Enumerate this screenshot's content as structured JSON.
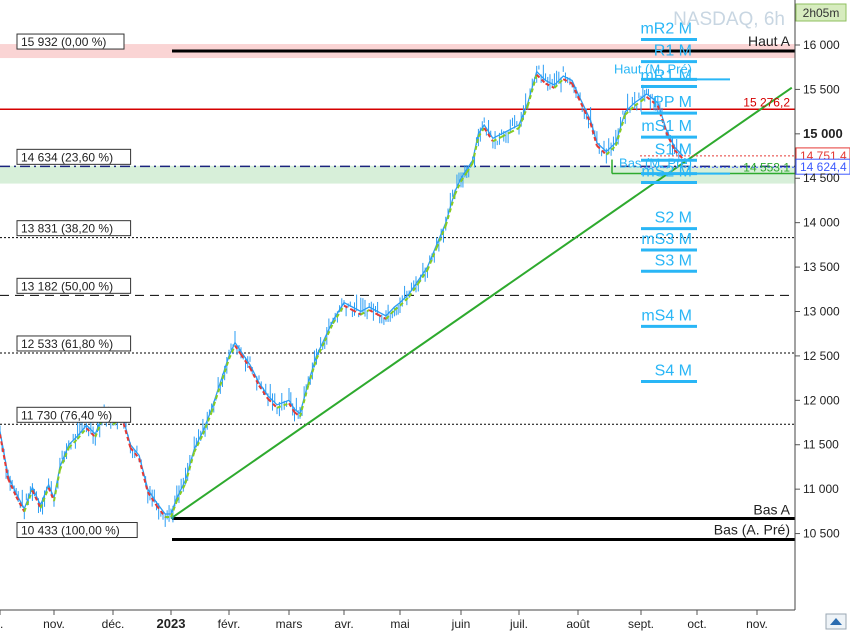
{
  "header": {
    "symbol_text": "NASDAQ, 6h",
    "timer": "2h05m"
  },
  "chart_data": {
    "type": "line",
    "title": "NASDAQ, 6h",
    "y_range": [
      10000,
      16000
    ],
    "y_ticks": [
      {
        "value": 16000,
        "label": "16 000"
      },
      {
        "value": 15500,
        "label": "15 500"
      },
      {
        "value": 15000,
        "label": "15 000"
      },
      {
        "value": 14500,
        "label": "14 500"
      },
      {
        "value": 14000,
        "label": "14 000"
      },
      {
        "value": 13500,
        "label": "13 500"
      },
      {
        "value": 13000,
        "label": "13 000"
      },
      {
        "value": 12500,
        "label": "12 500"
      },
      {
        "value": 12000,
        "label": "12 000"
      },
      {
        "value": 11500,
        "label": "11 500"
      },
      {
        "value": 11000,
        "label": "11 000"
      },
      {
        "value": 10500,
        "label": "10 500"
      }
    ],
    "y_tick_bold_value": 15000,
    "x_ticks": [
      {
        "t": 0,
        "label": "t."
      },
      {
        "t": 1,
        "label": "nov."
      },
      {
        "t": 2,
        "label": "déc."
      },
      {
        "t": 3,
        "label": "2023"
      },
      {
        "t": 4,
        "label": "févr."
      },
      {
        "t": 5,
        "label": "mars"
      },
      {
        "t": 6,
        "label": "avr."
      },
      {
        "t": 7,
        "label": "mai"
      },
      {
        "t": 8,
        "label": "juin"
      },
      {
        "t": 9,
        "label": "juil."
      },
      {
        "t": 10,
        "label": "août"
      },
      {
        "t": 11,
        "label": "sept."
      },
      {
        "t": 12,
        "label": "oct."
      },
      {
        "t": 13,
        "label": "nov."
      }
    ],
    "x_bold_tick": "2023",
    "price_series": {
      "name": "NASDAQ",
      "color": "#2a9df4",
      "points": [
        [
          0.0,
          11650
        ],
        [
          0.15,
          11150
        ],
        [
          0.3,
          10950
        ],
        [
          0.45,
          10780
        ],
        [
          0.6,
          11020
        ],
        [
          0.75,
          10820
        ],
        [
          0.9,
          11050
        ],
        [
          1.0,
          10900
        ],
        [
          1.1,
          11250
        ],
        [
          1.25,
          11500
        ],
        [
          1.4,
          11600
        ],
        [
          1.55,
          11720
        ],
        [
          1.7,
          11620
        ],
        [
          1.85,
          11880
        ],
        [
          2.0,
          11760
        ],
        [
          2.15,
          11850
        ],
        [
          2.3,
          11500
        ],
        [
          2.45,
          11380
        ],
        [
          2.6,
          11000
        ],
        [
          2.75,
          10850
        ],
        [
          2.9,
          10720
        ],
        [
          3.0,
          10720
        ],
        [
          3.1,
          10900
        ],
        [
          3.25,
          11100
        ],
        [
          3.4,
          11450
        ],
        [
          3.55,
          11650
        ],
        [
          3.7,
          11900
        ],
        [
          3.85,
          12200
        ],
        [
          4.0,
          12500
        ],
        [
          4.1,
          12650
        ],
        [
          4.2,
          12550
        ],
        [
          4.35,
          12400
        ],
        [
          4.5,
          12200
        ],
        [
          4.65,
          12050
        ],
        [
          4.8,
          11950
        ],
        [
          5.0,
          12000
        ],
        [
          5.1,
          11900
        ],
        [
          5.2,
          11850
        ],
        [
          5.35,
          12200
        ],
        [
          5.5,
          12500
        ],
        [
          5.65,
          12700
        ],
        [
          5.8,
          12900
        ],
        [
          6.0,
          13100
        ],
        [
          6.15,
          13050
        ],
        [
          6.3,
          13000
        ],
        [
          6.45,
          13050
        ],
        [
          6.6,
          13000
        ],
        [
          6.75,
          12950
        ],
        [
          6.9,
          13050
        ],
        [
          7.0,
          13100
        ],
        [
          7.15,
          13200
        ],
        [
          7.3,
          13350
        ],
        [
          7.45,
          13500
        ],
        [
          7.6,
          13750
        ],
        [
          7.75,
          14000
        ],
        [
          7.9,
          14350
        ],
        [
          8.0,
          14500
        ],
        [
          8.1,
          14600
        ],
        [
          8.2,
          14700
        ],
        [
          8.3,
          15000
        ],
        [
          8.4,
          15100
        ],
        [
          8.55,
          14950
        ],
        [
          8.7,
          15000
        ],
        [
          8.85,
          15050
        ],
        [
          9.0,
          15100
        ],
        [
          9.15,
          15350
        ],
        [
          9.3,
          15700
        ],
        [
          9.45,
          15600
        ],
        [
          9.6,
          15550
        ],
        [
          9.75,
          15650
        ],
        [
          9.9,
          15600
        ],
        [
          10.0,
          15450
        ],
        [
          10.1,
          15300
        ],
        [
          10.2,
          15150
        ],
        [
          10.3,
          14900
        ],
        [
          10.45,
          14800
        ],
        [
          10.6,
          14900
        ],
        [
          10.75,
          15250
        ],
        [
          10.9,
          15350
        ],
        [
          11.0,
          15400
        ],
        [
          11.1,
          15450
        ],
        [
          11.2,
          15400
        ],
        [
          11.3,
          15350
        ],
        [
          11.45,
          15050
        ],
        [
          11.6,
          14850
        ],
        [
          11.75,
          14751.4
        ]
      ]
    },
    "moving_average_color": "#88cc22",
    "moving_average_down_color": "#e53935",
    "levels": [
      {
        "value": 15932,
        "label": "15 932 (0,00 %)",
        "style": "thick",
        "color": "#000000",
        "band": "#f8c6c6",
        "right_label": "Haut A"
      },
      {
        "value": 14634,
        "label": "14 634 (23,60 %)",
        "style": "dashdot",
        "color": "#1a237e"
      },
      {
        "value": 13831,
        "label": "13 831 (38,20 %)",
        "style": "dotted",
        "color": "#000000"
      },
      {
        "value": 13182,
        "label": "13 182 (50,00 %)",
        "style": "dashed",
        "color": "#000000"
      },
      {
        "value": 12533,
        "label": "12 533 (61,80 %)",
        "style": "dotted",
        "color": "#000000"
      },
      {
        "value": 11730,
        "label": "11 730 (76,40 %)",
        "style": "dotted",
        "color": "#000000"
      },
      {
        "value": 10433,
        "label": "10 433 (100,00 %)",
        "style": "thick",
        "color": "#000000",
        "right_label": "Bas (A. Pré)"
      }
    ],
    "bas_a": {
      "value": 10670,
      "label": "Bas A"
    },
    "resistance": {
      "value": 15276.2,
      "label": "15 276,2",
      "color": "#d50000"
    },
    "support_band": {
      "from": 14440,
      "to": 14640,
      "color": "#cdebcf"
    },
    "trendline": {
      "from": [
        3.0,
        10670
      ],
      "to": [
        13.6,
        15520
      ],
      "color": "#2eaa2e"
    },
    "green_level": {
      "value": 14553.1,
      "label": "14 553,1",
      "color": "#2eaa2e"
    },
    "last_price": {
      "value": 14751.4,
      "label": "14 751,4",
      "color": "#e53935"
    },
    "blue_price": {
      "value": 14624.4,
      "label": "14 624,4",
      "color": "#3d5afe"
    },
    "pivot_color": "#29b6f6",
    "pivots": [
      {
        "label": "mR2 M",
        "value": 16130
      },
      {
        "label": "R1 M",
        "value": 15880
      },
      {
        "label": "Haut (M. Pré)",
        "value": 15680
      },
      {
        "label": "mR1 M",
        "value": 15600
      },
      {
        "label": "PP M",
        "value": 15300
      },
      {
        "label": "mS1 M",
        "value": 15030
      },
      {
        "label": "S1 M",
        "value": 14770
      },
      {
        "label": "Bas (M. Pré)",
        "value": 14620
      },
      {
        "label": "mS2 M",
        "value": 14520
      },
      {
        "label": "S2 M",
        "value": 14000
      },
      {
        "label": "mS3 M",
        "value": 13760
      },
      {
        "label": "S3 M",
        "value": 13520
      },
      {
        "label": "mS4 M",
        "value": 12900
      },
      {
        "label": "S4 M",
        "value": 12280
      }
    ]
  }
}
